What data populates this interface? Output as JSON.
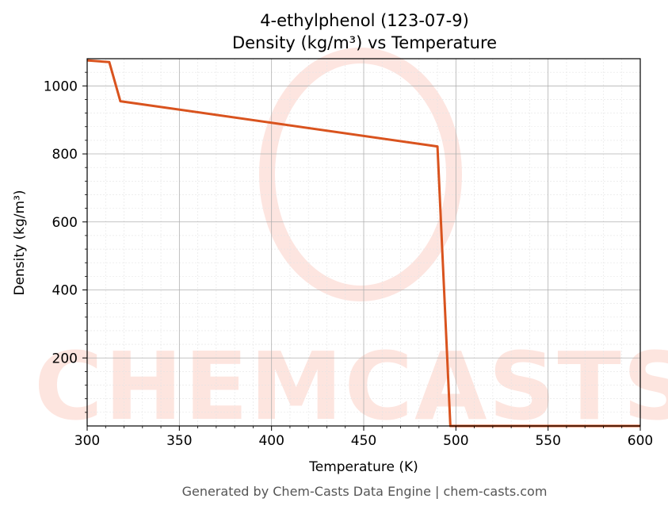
{
  "chart_data": {
    "type": "line",
    "title": "4-ethylphenol (123-07-9)",
    "subtitle": "Density (kg/m³) vs Temperature",
    "xlabel": "Temperature (K)",
    "ylabel": "Density (kg/m³)",
    "xlim": [
      300,
      600
    ],
    "ylim": [
      0,
      1080
    ],
    "x_ticks": [
      300,
      350,
      400,
      450,
      500,
      550,
      600
    ],
    "y_ticks": [
      200,
      400,
      600,
      800,
      1000
    ],
    "grid": true,
    "line_color": "#d9531e",
    "series": [
      {
        "x": [
          300,
          312,
          318,
          490,
          497,
          600
        ],
        "y": [
          1075,
          1070,
          955,
          822,
          0,
          0
        ]
      }
    ]
  },
  "watermark": {
    "text": "CHEMCASTS",
    "color": "#fbd3c9"
  },
  "footer": {
    "credit": "Generated by Chem-Casts Data Engine | chem-casts.com"
  }
}
